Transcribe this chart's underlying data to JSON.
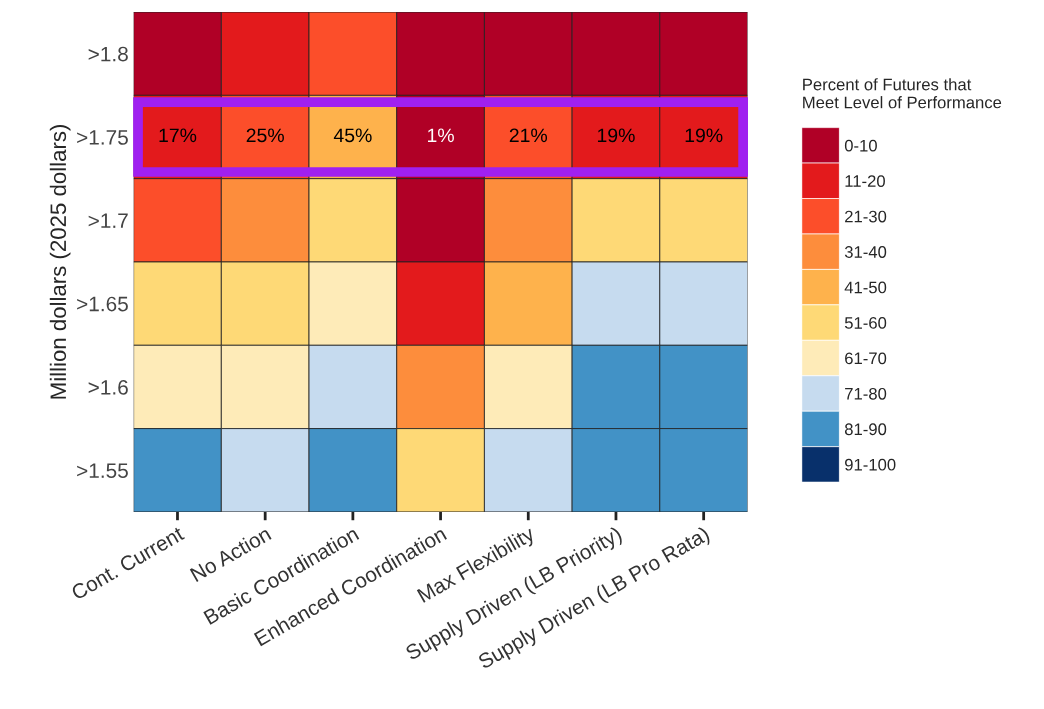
{
  "chart_data": {
    "type": "heatmap",
    "ylabel": "Million dollars (2025 dollars)",
    "clabel": "Percent of Futures that\nMeet Level of Performance",
    "categories": [
      "Cont. Current",
      "No Action",
      "Basic Coordination",
      "Enhanced Coordination",
      "Max Flexibility",
      "Supply Driven (LB Priority)",
      "Supply Driven (LB Pro Rata)"
    ],
    "y_categories": [
      ">1.8",
      ">1.75",
      ">1.7",
      ">1.65",
      ">1.6",
      ">1.55"
    ],
    "cells": [
      [
        5,
        15,
        25,
        5,
        5,
        5,
        5
      ],
      [
        17,
        25,
        45,
        1,
        21,
        19,
        19
      ],
      [
        25,
        35,
        55,
        5,
        35,
        55,
        55
      ],
      [
        55,
        55,
        65,
        15,
        45,
        75,
        75
      ],
      [
        65,
        65,
        75,
        35,
        65,
        85,
        85
      ],
      [
        85,
        75,
        85,
        55,
        75,
        85,
        85
      ]
    ],
    "cell_labels": [
      [
        null,
        null,
        null,
        null,
        null,
        null,
        null
      ],
      [
        "17%",
        "25%",
        "45%",
        "1%",
        "21%",
        "19%",
        "19%"
      ],
      [
        null,
        null,
        null,
        null,
        null,
        null,
        null
      ],
      [
        null,
        null,
        null,
        null,
        null,
        null,
        null
      ],
      [
        null,
        null,
        null,
        null,
        null,
        null,
        null
      ],
      [
        null,
        null,
        null,
        null,
        null,
        null,
        null
      ]
    ],
    "colors": [
      "#b00026",
      "#e31a1c",
      "#fc4e2a",
      "#fd8d3c",
      "#feb24c",
      "#fed976",
      "#feebb8",
      "#c6dbef",
      "#4292c6",
      "#08306b"
    ],
    "clim": [
      0,
      100
    ],
    "cticks": [
      {
        "value": 5,
        "label": "0-10"
      },
      {
        "value": 15,
        "label": "11-20"
      },
      {
        "value": 25,
        "label": "21-30"
      },
      {
        "value": 35,
        "label": "31-40"
      },
      {
        "value": 45,
        "label": "41-50"
      },
      {
        "value": 55,
        "label": "51-60"
      },
      {
        "value": 65,
        "label": "61-70"
      },
      {
        "value": 75,
        "label": "71-80"
      },
      {
        "value": 85,
        "label": "81-90"
      },
      {
        "value": 95,
        "label": "91-100"
      }
    ]
  }
}
